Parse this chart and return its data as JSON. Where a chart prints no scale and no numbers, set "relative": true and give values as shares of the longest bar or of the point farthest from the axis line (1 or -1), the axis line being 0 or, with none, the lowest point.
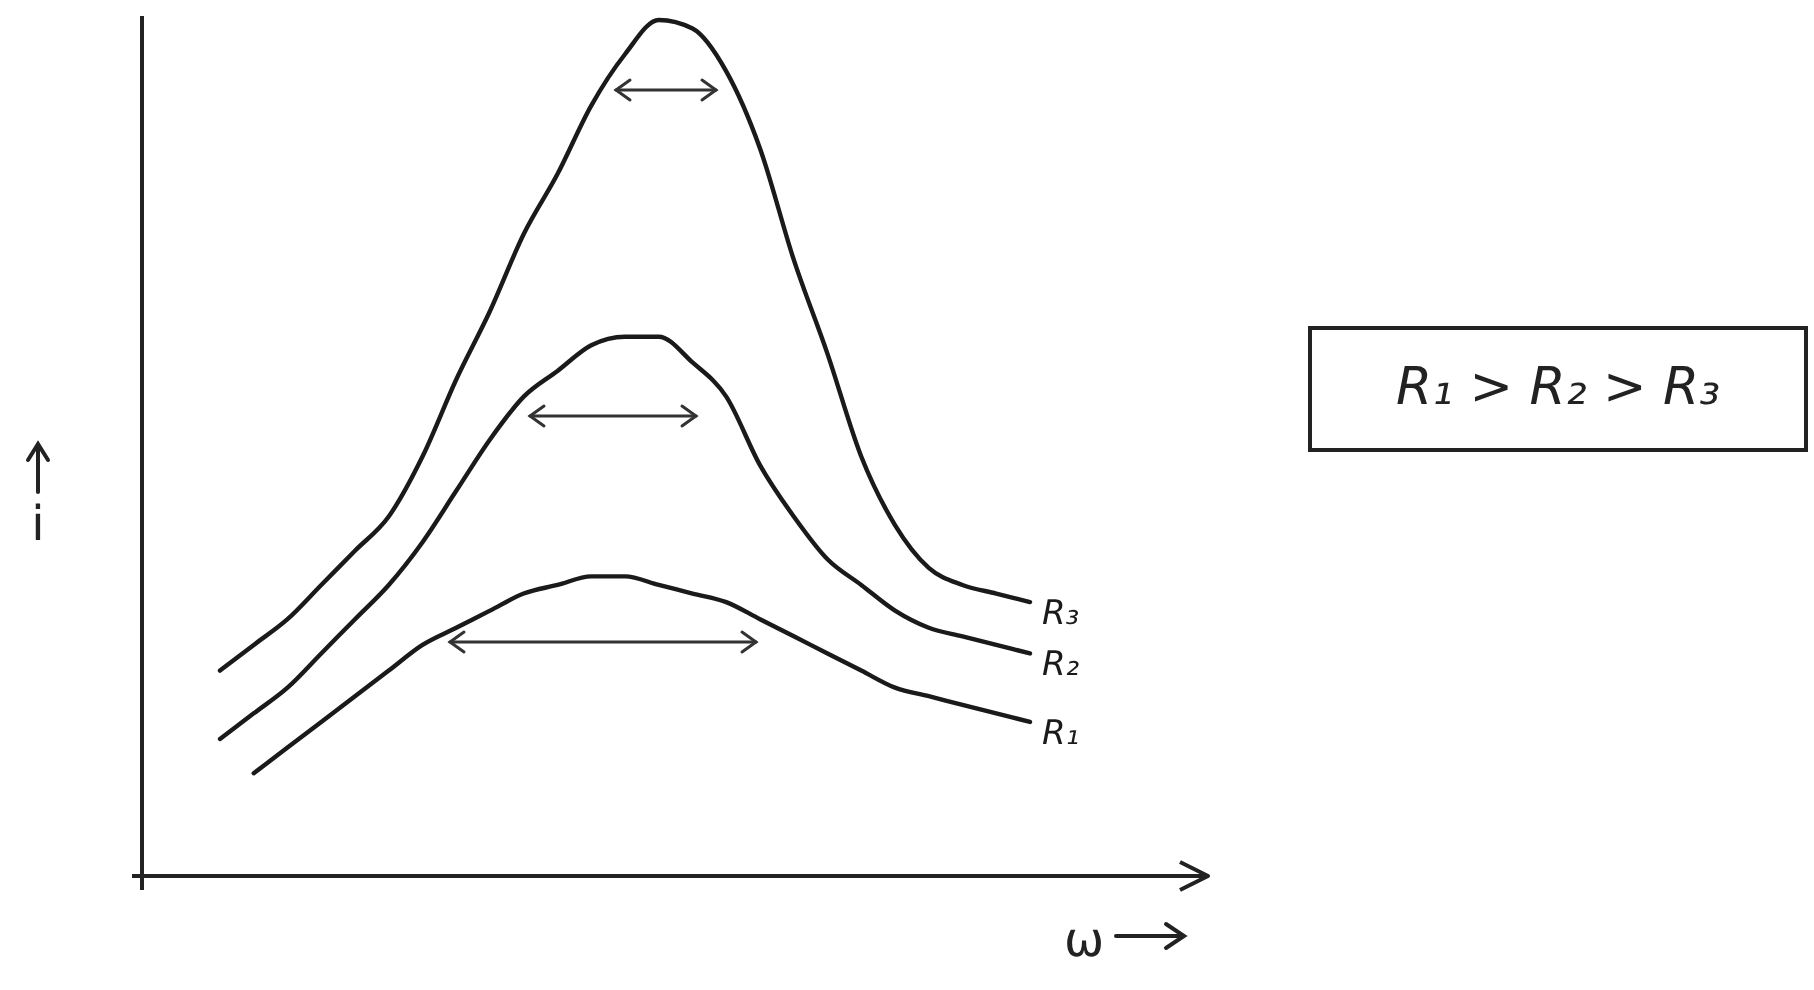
{
  "chart_data": {
    "type": "line",
    "relative": true,
    "xlabel": "ω",
    "ylabel": "i",
    "categories": [
      null,
      null,
      null,
      null,
      null,
      null,
      null,
      null,
      null,
      null,
      null,
      null,
      null,
      null,
      null,
      null,
      null,
      null,
      null,
      null,
      null,
      null,
      null,
      null,
      null
    ],
    "series": [
      {
        "name": "R₃",
        "color": "#1a1a1a",
        "values": [
          0.24,
          0.27,
          0.3,
          0.34,
          0.38,
          0.42,
          0.49,
          0.58,
          0.66,
          0.75,
          0.82,
          0.9,
          0.96,
          1,
          0.99,
          0.94,
          0.85,
          0.72,
          0.61,
          0.49,
          0.41,
          0.36,
          0.34,
          0.33,
          0.32
        ]
      },
      {
        "name": "R₂",
        "color": "#1a1a1a",
        "values": [
          0.16,
          0.19,
          0.22,
          0.26,
          0.3,
          0.34,
          0.39,
          0.45,
          0.51,
          0.56,
          0.59,
          0.62,
          0.63,
          0.63,
          0.6,
          0.56,
          0.48,
          0.42,
          0.37,
          0.34,
          0.31,
          0.29,
          0.28,
          0.27,
          0.26
        ]
      },
      {
        "name": "R₁",
        "color": "#1a1a1a",
        "values": [
          null,
          0.12,
          0.15,
          0.18,
          0.21,
          0.24,
          0.27,
          0.29,
          0.31,
          0.33,
          0.34,
          0.35,
          0.35,
          0.34,
          0.33,
          0.32,
          0.3,
          0.28,
          0.26,
          0.24,
          0.22,
          0.21,
          0.2,
          0.19,
          0.18
        ]
      }
    ],
    "annotations": [
      "R₁ > R₂ > R₃"
    ]
  }
}
